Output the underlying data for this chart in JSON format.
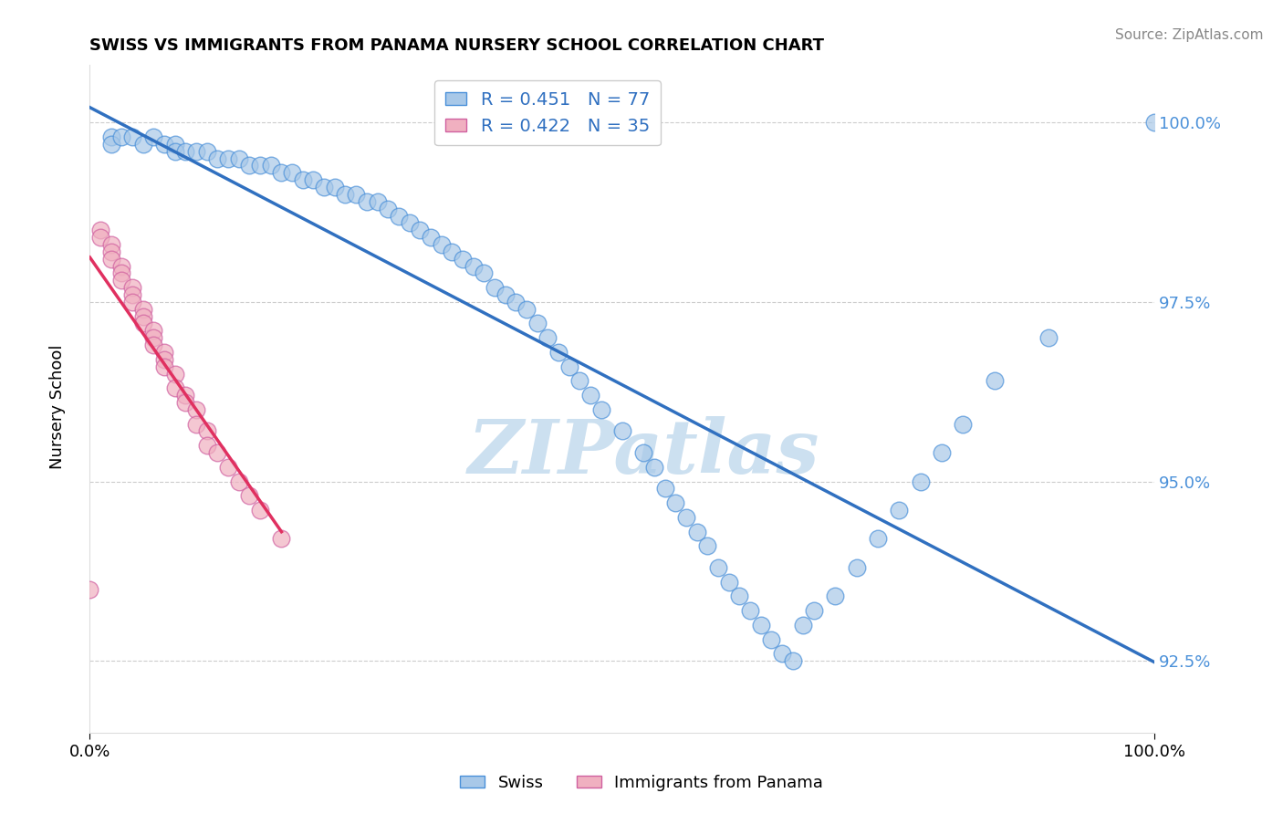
{
  "title": "SWISS VS IMMIGRANTS FROM PANAMA NURSERY SCHOOL CORRELATION CHART",
  "source": "Source: ZipAtlas.com",
  "ylabel": "Nursery School",
  "xlim": [
    0.0,
    1.0
  ],
  "ylim": [
    0.915,
    1.008
  ],
  "yticks": [
    0.925,
    0.95,
    0.975,
    1.0
  ],
  "ytick_labels": [
    "92.5%",
    "95.0%",
    "97.5%",
    "100.0%"
  ],
  "xticks": [
    0.0,
    1.0
  ],
  "xtick_labels": [
    "0.0%",
    "100.0%"
  ],
  "R_swiss": 0.451,
  "N_swiss": 77,
  "R_panama": 0.422,
  "N_panama": 35,
  "blue_fill": "#a8c8e8",
  "blue_edge": "#4a90d9",
  "pink_fill": "#f0b0c0",
  "pink_edge": "#d060a0",
  "blue_line": "#3070c0",
  "pink_line": "#e03060",
  "watermark_color": "#cce0f0",
  "grid_color": "#cccccc",
  "tick_color": "#4a90d9",
  "swiss_x": [
    0.02,
    0.02,
    0.03,
    0.04,
    0.05,
    0.06,
    0.07,
    0.08,
    0.08,
    0.09,
    0.1,
    0.11,
    0.12,
    0.13,
    0.14,
    0.15,
    0.16,
    0.17,
    0.18,
    0.19,
    0.2,
    0.21,
    0.22,
    0.23,
    0.24,
    0.25,
    0.26,
    0.27,
    0.28,
    0.29,
    0.3,
    0.31,
    0.32,
    0.33,
    0.34,
    0.35,
    0.36,
    0.37,
    0.38,
    0.39,
    0.4,
    0.41,
    0.42,
    0.43,
    0.44,
    0.45,
    0.46,
    0.47,
    0.48,
    0.5,
    0.52,
    0.53,
    0.54,
    0.55,
    0.56,
    0.57,
    0.58,
    0.59,
    0.6,
    0.61,
    0.62,
    0.63,
    0.64,
    0.65,
    0.66,
    0.67,
    0.68,
    0.7,
    0.72,
    0.74,
    0.76,
    0.78,
    0.8,
    0.82,
    0.85,
    0.9,
    1.0
  ],
  "swiss_y": [
    0.998,
    0.997,
    0.998,
    0.998,
    0.997,
    0.998,
    0.997,
    0.997,
    0.996,
    0.996,
    0.996,
    0.996,
    0.995,
    0.995,
    0.995,
    0.994,
    0.994,
    0.994,
    0.993,
    0.993,
    0.992,
    0.992,
    0.991,
    0.991,
    0.99,
    0.99,
    0.989,
    0.989,
    0.988,
    0.987,
    0.986,
    0.985,
    0.984,
    0.983,
    0.982,
    0.981,
    0.98,
    0.979,
    0.977,
    0.976,
    0.975,
    0.974,
    0.972,
    0.97,
    0.968,
    0.966,
    0.964,
    0.962,
    0.96,
    0.957,
    0.954,
    0.952,
    0.949,
    0.947,
    0.945,
    0.943,
    0.941,
    0.938,
    0.936,
    0.934,
    0.932,
    0.93,
    0.928,
    0.926,
    0.925,
    0.93,
    0.932,
    0.934,
    0.938,
    0.942,
    0.946,
    0.95,
    0.954,
    0.958,
    0.964,
    0.97,
    1.0
  ],
  "panama_x": [
    0.0,
    0.01,
    0.01,
    0.02,
    0.02,
    0.02,
    0.03,
    0.03,
    0.03,
    0.04,
    0.04,
    0.04,
    0.05,
    0.05,
    0.05,
    0.06,
    0.06,
    0.06,
    0.07,
    0.07,
    0.07,
    0.08,
    0.08,
    0.09,
    0.09,
    0.1,
    0.1,
    0.11,
    0.11,
    0.12,
    0.13,
    0.14,
    0.15,
    0.16,
    0.18
  ],
  "panama_y": [
    0.935,
    0.985,
    0.984,
    0.983,
    0.982,
    0.981,
    0.98,
    0.979,
    0.978,
    0.977,
    0.976,
    0.975,
    0.974,
    0.973,
    0.972,
    0.971,
    0.97,
    0.969,
    0.968,
    0.967,
    0.966,
    0.965,
    0.963,
    0.962,
    0.961,
    0.96,
    0.958,
    0.957,
    0.955,
    0.954,
    0.952,
    0.95,
    0.948,
    0.946,
    0.942
  ]
}
